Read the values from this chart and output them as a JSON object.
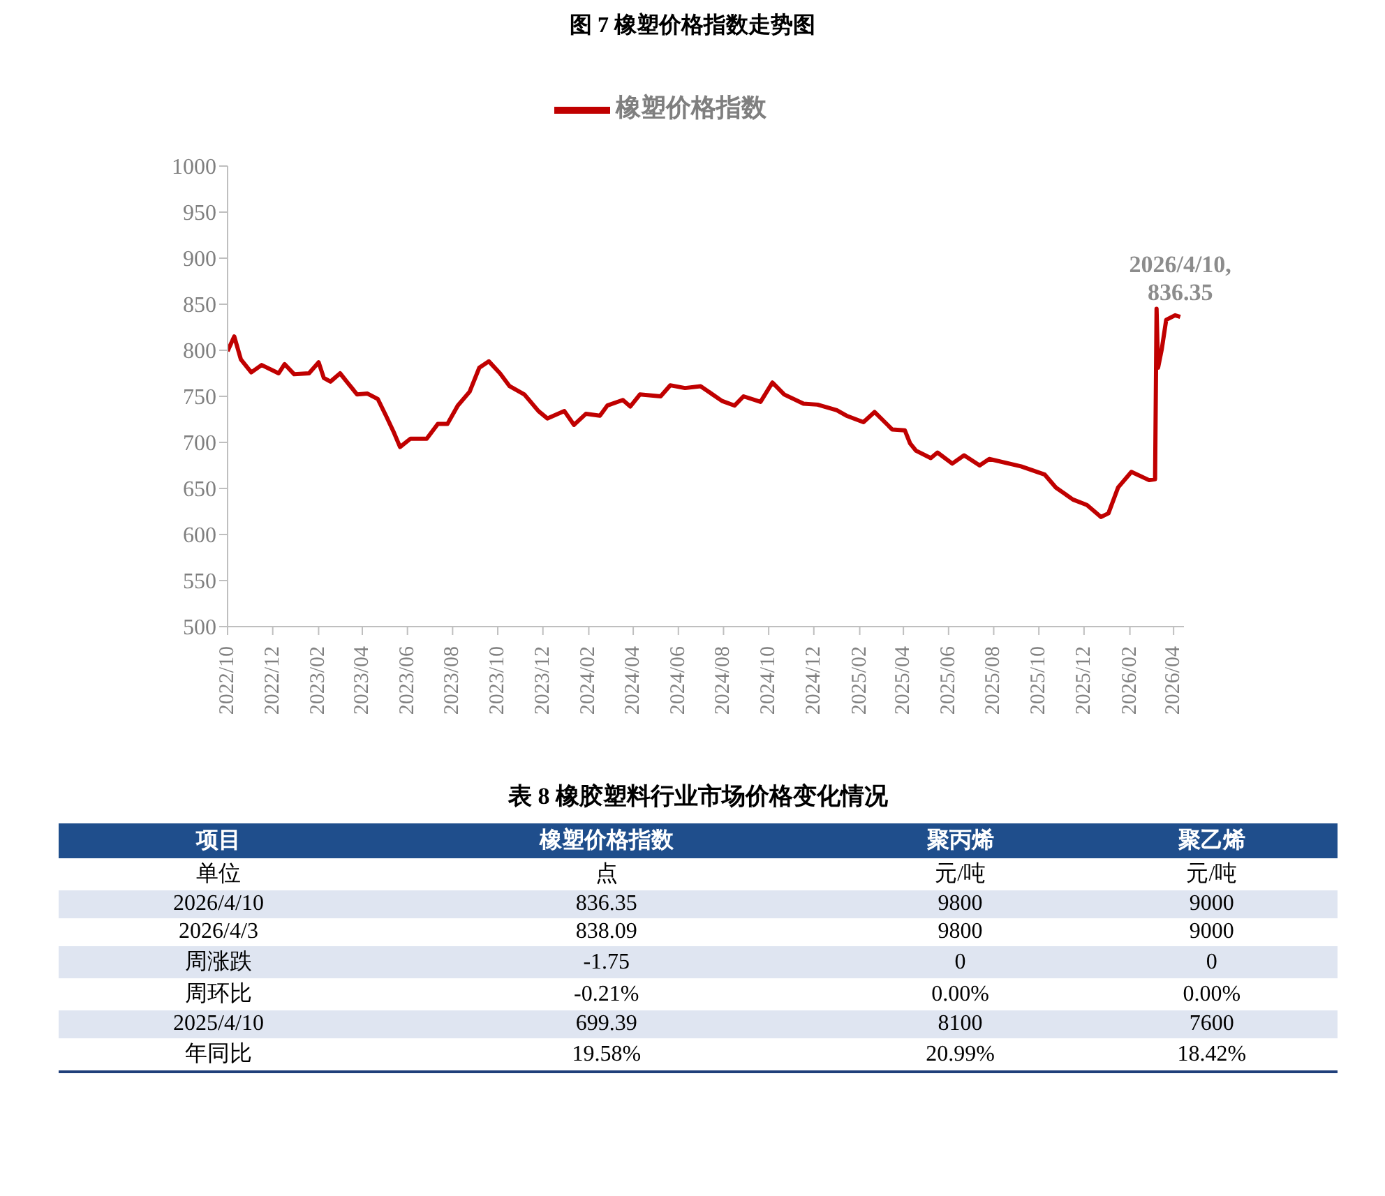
{
  "chart_data": [
    {
      "type": "line",
      "title": "图 7   橡塑价格指数走势图",
      "legend": "top",
      "line_style": "solid",
      "marker": "none",
      "grid": false,
      "x": [
        "2022-10-01",
        "2022-10-10",
        "2022-10-19",
        "2022-11-02",
        "2022-11-16",
        "2022-12-09",
        "2022-12-17",
        "2022-12-30",
        "2023-01-19",
        "2023-02-01",
        "2023-02-08",
        "2023-02-17",
        "2023-03-02",
        "2023-03-13",
        "2023-03-25",
        "2023-04-08",
        "2023-04-22",
        "2023-05-03",
        "2023-05-13",
        "2023-05-22",
        "2023-06-05",
        "2023-06-27",
        "2023-07-12",
        "2023-07-25",
        "2023-08-08",
        "2023-08-24",
        "2023-09-06",
        "2023-09-19",
        "2023-10-04",
        "2023-10-17",
        "2023-11-06",
        "2023-11-25",
        "2023-12-07",
        "2023-12-30",
        "2024-01-12",
        "2024-01-28",
        "2024-02-16",
        "2024-02-26",
        "2024-03-18",
        "2024-03-28",
        "2024-04-10",
        "2024-05-08",
        "2024-05-21",
        "2024-06-10",
        "2024-07-01",
        "2024-07-30",
        "2024-08-16",
        "2024-08-28",
        "2024-09-20",
        "2024-10-06",
        "2024-10-22",
        "2024-11-17",
        "2024-12-06",
        "2025-01-01",
        "2025-01-14",
        "2025-02-06",
        "2025-02-21",
        "2025-03-17",
        "2025-04-03",
        "2025-04-10",
        "2025-04-18",
        "2025-05-08",
        "2025-05-17",
        "2025-06-06",
        "2025-06-22",
        "2025-07-13",
        "2025-07-26",
        "2025-09-07",
        "2025-10-09",
        "2025-10-24",
        "2025-11-16",
        "2025-12-05",
        "2025-12-24",
        "2026-01-03",
        "2026-01-16",
        "2026-02-03",
        "2026-02-27",
        "2026-03-07",
        "2026-03-09",
        "2026-03-11",
        "2026-03-16",
        "2026-03-22",
        "2026-04-03",
        "2026-04-10"
      ],
      "series": [
        {
          "name": "橡塑价格指数",
          "color": "#c00000",
          "values": [
            799,
            815,
            790,
            776,
            784,
            775,
            785,
            774,
            775,
            787,
            770,
            766,
            775,
            764,
            752,
            753,
            747,
            729,
            712,
            695,
            704,
            704,
            720,
            720,
            740,
            755,
            781,
            788,
            775,
            761,
            752,
            734,
            726,
            734,
            719,
            731,
            729,
            740,
            746,
            739,
            752,
            750,
            762,
            759,
            761,
            745,
            740,
            750,
            744,
            765,
            752,
            742,
            741,
            735,
            729,
            722,
            733,
            714,
            713,
            699,
            691,
            683,
            689,
            677,
            686,
            675,
            682,
            674,
            665,
            651,
            638,
            632,
            619,
            623,
            651,
            668,
            659,
            660,
            845,
            781,
            801,
            833,
            838,
            836.35
          ]
        }
      ],
      "xlim": [
        "2022-10-01",
        "2026-04-15"
      ],
      "xticks": [
        {
          "value": "2022-10",
          "label": "2022/10"
        },
        {
          "value": "2022-12",
          "label": "2022/12"
        },
        {
          "value": "2023-02",
          "label": "2023/02"
        },
        {
          "value": "2023-04",
          "label": "2023/04"
        },
        {
          "value": "2023-06",
          "label": "2023/06"
        },
        {
          "value": "2023-08",
          "label": "2023/08"
        },
        {
          "value": "2023-10",
          "label": "2023/10"
        },
        {
          "value": "2023-12",
          "label": "2023/12"
        },
        {
          "value": "2024-02",
          "label": "2024/02"
        },
        {
          "value": "2024-04",
          "label": "2024/04"
        },
        {
          "value": "2024-06",
          "label": "2024/06"
        },
        {
          "value": "2024-08",
          "label": "2024/08"
        },
        {
          "value": "2024-10",
          "label": "2024/10"
        },
        {
          "value": "2024-12",
          "label": "2024/12"
        },
        {
          "value": "2025-02",
          "label": "2025/02"
        },
        {
          "value": "2025-04",
          "label": "2025/04"
        },
        {
          "value": "2025-06",
          "label": "2025/06"
        },
        {
          "value": "2025-08",
          "label": "2025/08"
        },
        {
          "value": "2025-10",
          "label": "2025/10"
        },
        {
          "value": "2025-12",
          "label": "2025/12"
        },
        {
          "value": "2026-02",
          "label": "2026/02"
        },
        {
          "value": "2026-04",
          "label": "2026/04"
        }
      ],
      "ylim": [
        500,
        1000
      ],
      "yticks": [
        500,
        550,
        600,
        650,
        700,
        750,
        800,
        850,
        900,
        950,
        1000
      ],
      "annotations": [
        {
          "text": "2026/4/10,\n836.35",
          "x": "2026-04-10",
          "y": 836.35
        }
      ]
    },
    {
      "type": "other",
      "title": "表 8 橡胶塑料行业市场价格变化情况",
      "categories": [
        "项目",
        "橡塑价格指数",
        "聚丙烯",
        "聚乙烯"
      ],
      "y_categories": [
        "单位",
        "2026/4/10",
        "2026/4/3",
        "周涨跌",
        "周环比",
        "2025/4/10",
        "年同比"
      ],
      "cell_labels": [
        [
          "点",
          "元/吨",
          "元/吨"
        ],
        [
          "836.35",
          "9800",
          "9000"
        ],
        [
          "838.09",
          "9800",
          "9000"
        ],
        [
          "-1.75",
          "0",
          "0"
        ],
        [
          "-0.21%",
          "0.00%",
          "0.00%"
        ],
        [
          "699.39",
          "8100",
          "7600"
        ],
        [
          "19.58%",
          "20.99%",
          "18.42%"
        ]
      ]
    }
  ]
}
